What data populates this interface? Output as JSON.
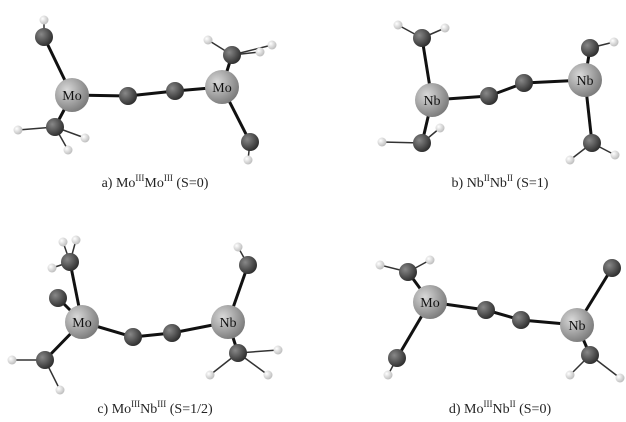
{
  "panels": [
    {
      "atoms": [
        "Mo",
        "Mo"
      ],
      "caption": [
        "a) Mo",
        "III",
        "Mo",
        "III",
        " (S=0)"
      ]
    },
    {
      "atoms": [
        "Nb",
        "Nb"
      ],
      "caption": [
        "b) Nb",
        "II",
        "Nb",
        "II",
        " (S=1)"
      ]
    },
    {
      "atoms": [
        "Mo",
        "Nb"
      ],
      "caption": [
        "c) Mo",
        "III",
        "Nb",
        "III",
        " (S=1/2)"
      ]
    },
    {
      "atoms": [
        "Mo",
        "Nb"
      ],
      "caption": [
        "d) Mo",
        "III",
        "Nb",
        "II",
        " (S=0)"
      ]
    }
  ]
}
